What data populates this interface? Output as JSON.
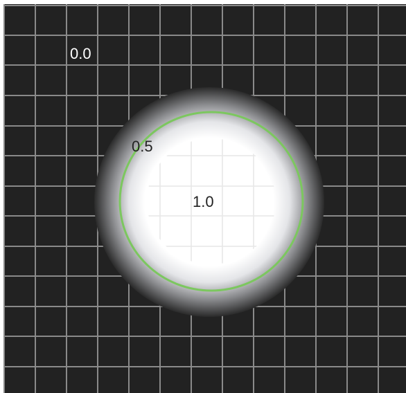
{
  "diagram": {
    "labels": {
      "outer": "0.0",
      "mid": "0.5",
      "center": "1.0"
    },
    "colors": {
      "background": "#222222",
      "grid": "#8a8a8a",
      "inner_fill": "#ffffff",
      "contour_line": "#7cc75f",
      "outer_label": "#ffffff",
      "inner_label": "#222222"
    }
  }
}
